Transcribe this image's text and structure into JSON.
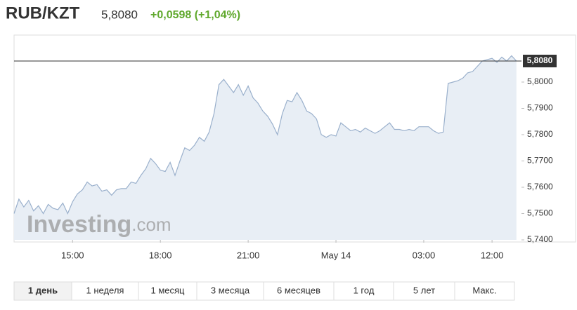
{
  "chart_data": {
    "type": "area",
    "title": "RUB/KZT",
    "price": "5,8080",
    "change": "+0,0598 (+1,04%)",
    "watermark": [
      "Investing",
      ".com"
    ],
    "color": "#9ab0cc",
    "fill": "#e8eef5",
    "current_price": {
      "value": 5.808,
      "label": "5,8080"
    },
    "categories": [
      null,
      null,
      null,
      null,
      null,
      null,
      null,
      null,
      null,
      null,
      null,
      null,
      "15:00",
      null,
      null,
      null,
      null,
      null,
      null,
      null,
      null,
      null,
      null,
      null,
      null,
      null,
      null,
      null,
      null,
      null,
      "18:00",
      null,
      null,
      null,
      null,
      null,
      null,
      null,
      null,
      null,
      null,
      null,
      null,
      null,
      null,
      null,
      null,
      null,
      "21:00",
      null,
      null,
      null,
      null,
      null,
      null,
      null,
      null,
      null,
      null,
      null,
      null,
      null,
      null,
      null,
      null,
      null,
      "May 14",
      null,
      null,
      null,
      null,
      null,
      null,
      null,
      null,
      null,
      null,
      null,
      null,
      null,
      null,
      null,
      null,
      null,
      "03:00",
      null,
      null,
      null,
      null,
      null,
      null,
      null,
      null,
      null,
      null,
      null,
      null,
      null,
      "12:00",
      null,
      null,
      null,
      null,
      null
    ],
    "values": [
      5.75,
      5.7555,
      5.7525,
      5.755,
      5.751,
      5.753,
      5.75,
      5.7535,
      5.752,
      5.7515,
      5.754,
      5.75,
      5.7545,
      5.7575,
      5.759,
      5.762,
      5.7605,
      5.761,
      5.7585,
      5.759,
      5.757,
      5.759,
      5.7595,
      5.7595,
      5.762,
      5.7615,
      5.7645,
      5.767,
      5.771,
      5.769,
      5.7665,
      5.766,
      5.7695,
      5.7645,
      5.77,
      5.775,
      5.774,
      5.776,
      5.779,
      5.7775,
      5.781,
      5.788,
      5.799,
      5.801,
      5.7985,
      5.796,
      5.799,
      5.795,
      5.7985,
      5.794,
      5.792,
      5.789,
      5.787,
      5.784,
      5.78,
      5.788,
      5.793,
      5.7925,
      5.796,
      5.793,
      5.789,
      5.788,
      5.786,
      5.78,
      5.779,
      5.78,
      5.7795,
      5.7845,
      5.783,
      5.7815,
      5.782,
      5.781,
      5.7825,
      5.7815,
      5.7805,
      5.7815,
      5.783,
      5.7845,
      5.782,
      5.782,
      5.7815,
      5.782,
      5.7815,
      5.783,
      5.783,
      5.783,
      5.7815,
      5.7805,
      5.781,
      5.7995,
      5.8,
      5.8005,
      5.8015,
      5.8035,
      5.804,
      5.806,
      5.808,
      5.8085,
      5.809,
      5.8075,
      5.8095,
      5.808,
      5.81,
      5.808
    ],
    "ylim": [
      5.74,
      5.816
    ],
    "yticks": [
      {
        "value": 5.74,
        "label": "5,7400"
      },
      {
        "value": 5.75,
        "label": "5,7500"
      },
      {
        "value": 5.76,
        "label": "5,7600"
      },
      {
        "value": 5.77,
        "label": "5,7700"
      },
      {
        "value": 5.78,
        "label": "5,7800"
      },
      {
        "value": 5.79,
        "label": "5,7900"
      },
      {
        "value": 5.8,
        "label": "5,8000"
      }
    ],
    "tabs": [
      "1 день",
      "1 неделя",
      "1 месяц",
      "3 месяца",
      "6 месяцев",
      "1 год",
      "5 лет",
      "Макс."
    ],
    "active_tab": 0
  }
}
